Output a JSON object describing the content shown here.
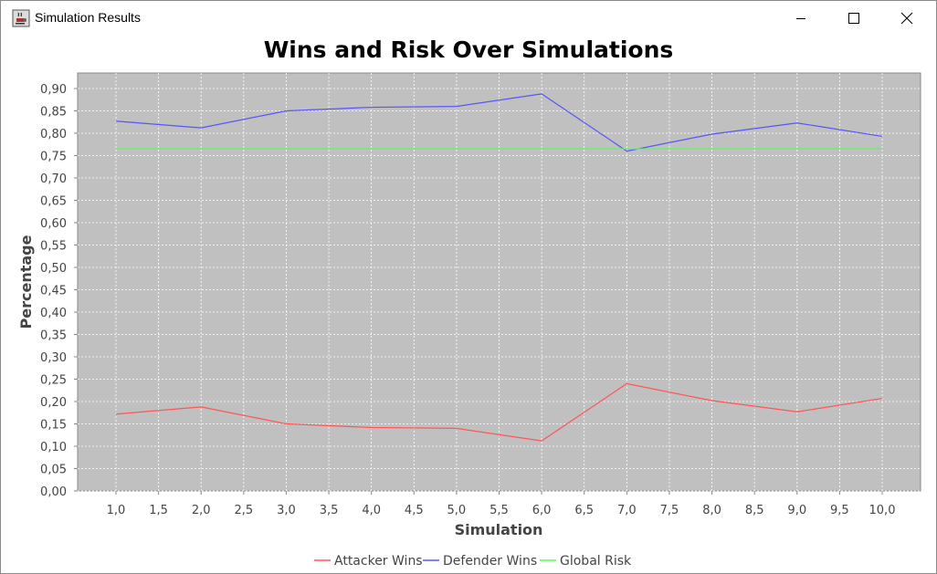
{
  "window": {
    "title": "Simulation Results",
    "icons": {
      "app": "java-cup-icon",
      "minimize": "minimize-icon",
      "maximize": "maximize-icon",
      "close": "close-icon"
    }
  },
  "chart_data": {
    "type": "line",
    "title": "Wins and Risk Over Simulations",
    "xlabel": "Simulation",
    "ylabel": "Percentage",
    "xlim": [
      0.5,
      10.5
    ],
    "ylim": [
      0.0,
      0.9
    ],
    "x_ticks": [
      "1,0",
      "1,5",
      "2,0",
      "2,5",
      "3,0",
      "3,5",
      "4,0",
      "4,5",
      "5,0",
      "5,5",
      "6,0",
      "6,5",
      "7,0",
      "7,5",
      "8,0",
      "8,5",
      "9,0",
      "9,5",
      "10,0"
    ],
    "y_ticks": [
      "0,00",
      "0,05",
      "0,10",
      "0,15",
      "0,20",
      "0,25",
      "0,30",
      "0,35",
      "0,40",
      "0,45",
      "0,50",
      "0,55",
      "0,60",
      "0,65",
      "0,70",
      "0,75",
      "0,80",
      "0,85",
      "0,90"
    ],
    "grid": true,
    "legend_position": "bottom",
    "plot_background": "#c0c0c0",
    "x": [
      1,
      2,
      3,
      4,
      5,
      6,
      7,
      8,
      9,
      10
    ],
    "series": [
      {
        "name": "Attacker Wins",
        "color": "#ff5555",
        "values": [
          0.172,
          0.188,
          0.15,
          0.142,
          0.14,
          0.112,
          0.24,
          0.202,
          0.177,
          0.207
        ]
      },
      {
        "name": "Defender Wins",
        "color": "#5555ff",
        "values": [
          0.827,
          0.812,
          0.85,
          0.858,
          0.86,
          0.888,
          0.76,
          0.798,
          0.823,
          0.793
        ]
      },
      {
        "name": "Global Risk",
        "color": "#55ff55",
        "values": [
          0.765,
          0.765,
          0.765,
          0.765,
          0.765,
          0.765,
          0.765,
          0.765,
          0.765,
          0.765
        ]
      }
    ]
  }
}
